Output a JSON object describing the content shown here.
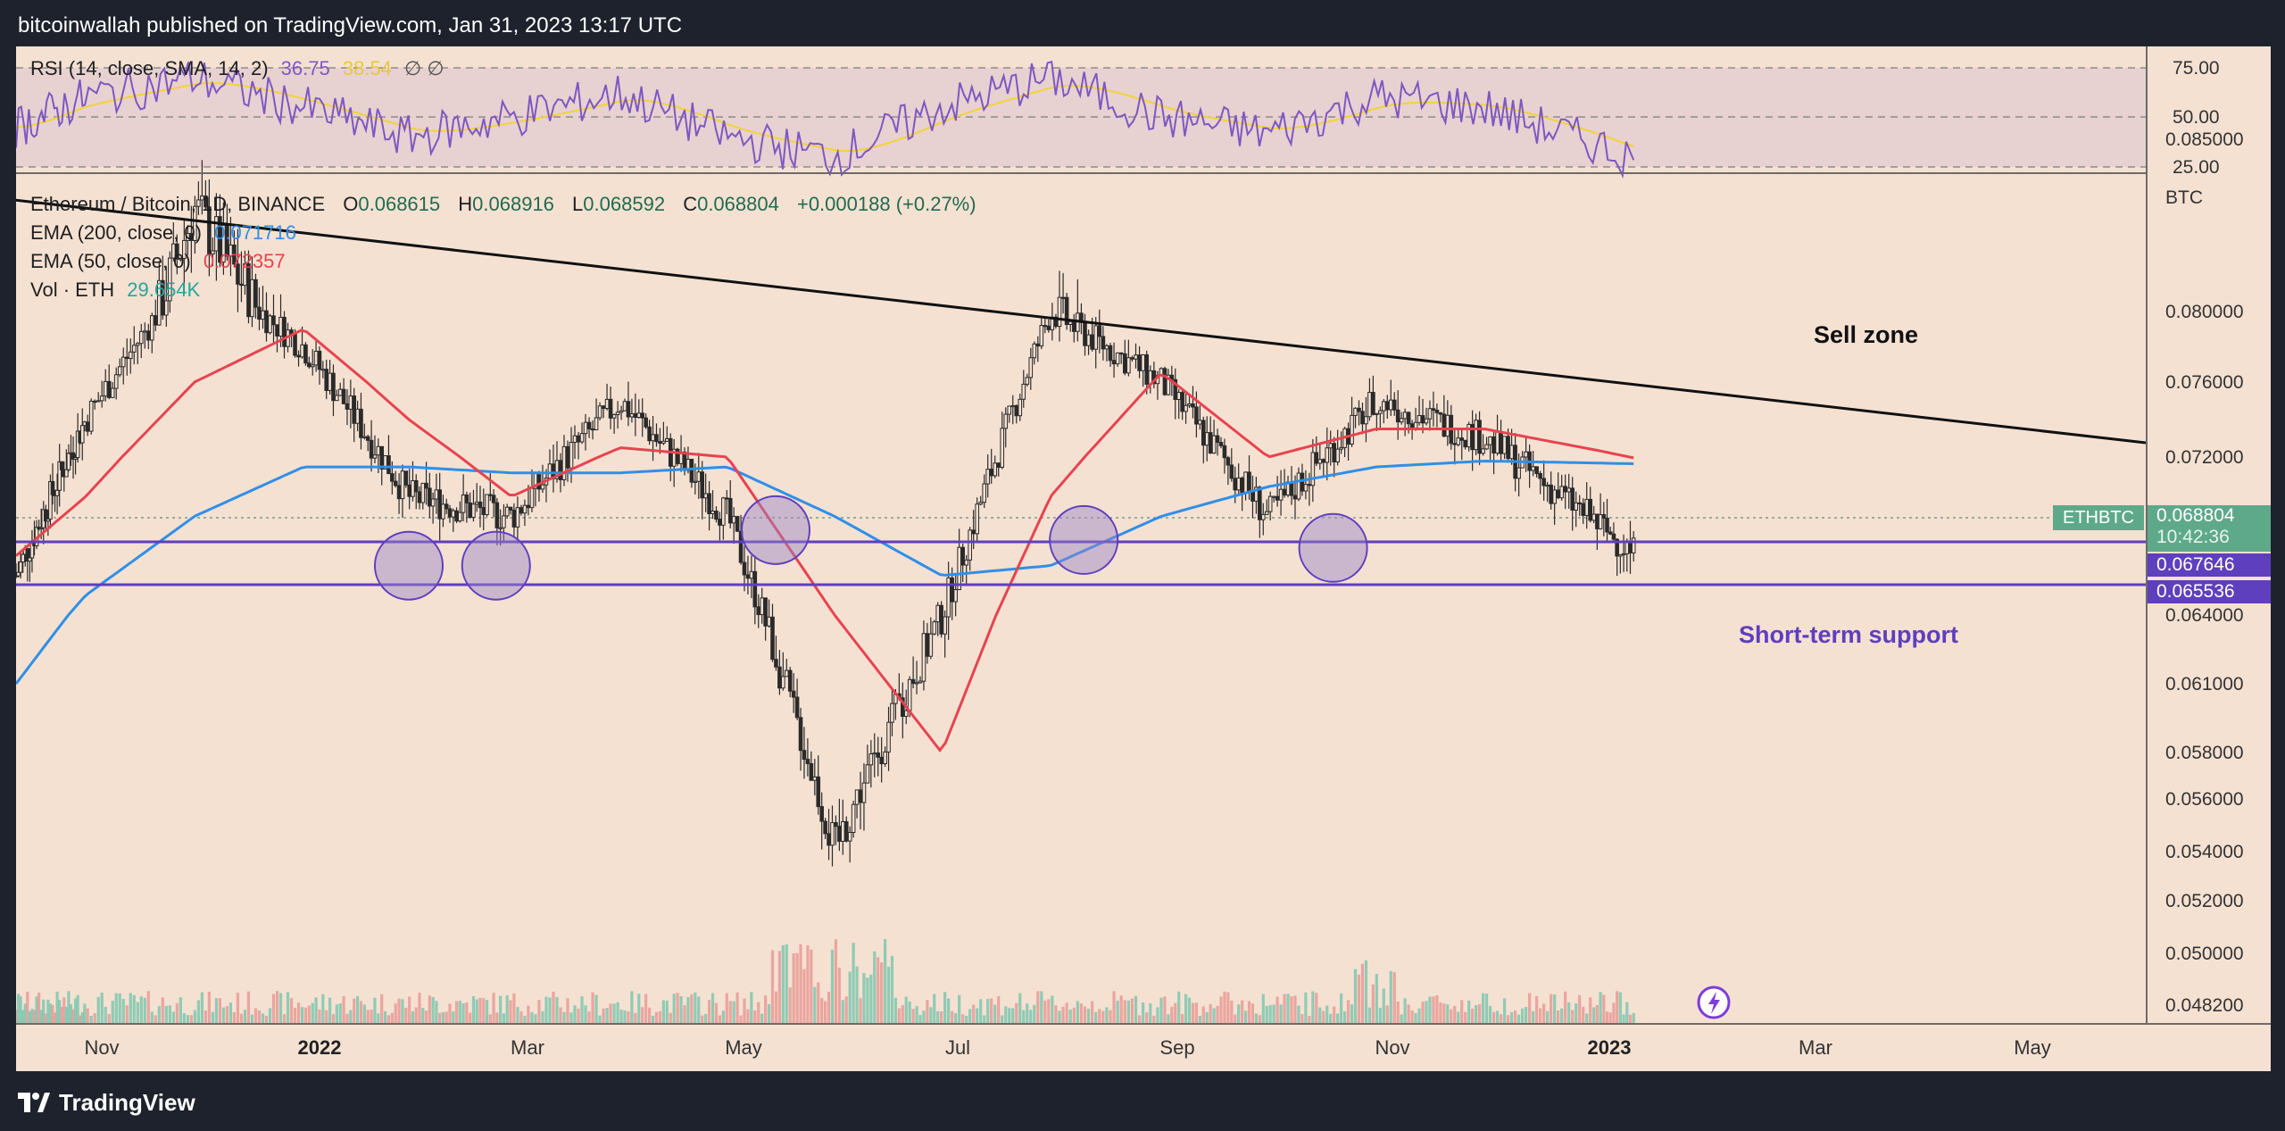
{
  "header": {
    "title": "bitcoinwallah published on TradingView.com, Jan 31, 2023 13:17 UTC"
  },
  "footer": {
    "brand": "TradingView"
  },
  "colors": {
    "background": "#f5e1d2",
    "ema200": "#2f8fe8",
    "ema50": "#e8434f",
    "rsi": "#7e57c2",
    "rsi_sma": "#f2d335",
    "support": "#5e3fbe",
    "up_volume": "#7cc7b0",
    "down_volume": "#e89a96",
    "candle": "#2a2a2a",
    "price_badge": "#5fa98b"
  },
  "rsi_pane": {
    "legend": {
      "label": "RSI (14, close, SMA, 14, 2)",
      "rsi_value": "36.75",
      "sma_value": "38.54",
      "extra": "∅ ∅"
    },
    "ticks": [
      "75.00",
      "50.00",
      "25.00"
    ]
  },
  "price_pane": {
    "legend": {
      "symbol": "Ethereum / Bitcoin, 1D, BINANCE",
      "open_label": "O",
      "open": "0.068615",
      "high_label": "H",
      "high": "0.068916",
      "low_label": "L",
      "low": "0.068592",
      "close_label": "C",
      "close": "0.068804",
      "change": "+0.000188 (+0.27%)",
      "ema200_label": "EMA (200, close, 0)",
      "ema200_value": "0.071716",
      "ema50_label": "EMA (50, close, 0)",
      "ema50_value": "0.072357",
      "vol_label": "Vol · ETH",
      "vol_value": "29.654K"
    },
    "currency": "BTC",
    "ticks": [
      "0.085000",
      "0.080000",
      "0.076000",
      "0.072000",
      "0.064000",
      "0.061000",
      "0.058000",
      "0.056000",
      "0.054000",
      "0.052000",
      "0.050000",
      "0.048200"
    ],
    "current_price": {
      "symbol": "ETHBTC",
      "price": "0.068804",
      "countdown": "10:42:36"
    },
    "support_levels": [
      "0.067646",
      "0.065536"
    ],
    "annotations": {
      "sell_zone": "Sell zone",
      "support": "Short-term support"
    }
  },
  "time_axis": [
    "Nov",
    "2022",
    "Mar",
    "May",
    "Jul",
    "Sep",
    "Nov",
    "2023",
    "Mar",
    "May"
  ],
  "chart_data": {
    "type": "candlestick",
    "title": "Ethereum / Bitcoin, 1D, BINANCE",
    "x": [
      "2021-10",
      "2021-11",
      "2021-12",
      "2022-01",
      "2022-02",
      "2022-03",
      "2022-04",
      "2022-05",
      "2022-06",
      "2022-07",
      "2022-08",
      "2022-09",
      "2022-10",
      "2022-11",
      "2022-12",
      "2023-01"
    ],
    "series": [
      {
        "name": "ETH/BTC close",
        "values": [
          0.066,
          0.074,
          0.083,
          0.078,
          0.07,
          0.069,
          0.075,
          0.069,
          0.054,
          0.064,
          0.08,
          0.076,
          0.069,
          0.075,
          0.073,
          0.0688
        ]
      },
      {
        "name": "EMA (200, close, 0)",
        "values": [
          0.061,
          0.065,
          0.069,
          0.0715,
          0.0715,
          0.0712,
          0.0712,
          0.0715,
          0.069,
          0.066,
          0.0665,
          0.069,
          0.0705,
          0.0715,
          0.0718,
          0.0717
        ]
      },
      {
        "name": "EMA (50, close, 0)",
        "values": [
          0.067,
          0.07,
          0.076,
          0.079,
          0.074,
          0.07,
          0.0725,
          0.072,
          0.064,
          0.058,
          0.07,
          0.0765,
          0.072,
          0.0735,
          0.0735,
          0.0724
        ]
      },
      {
        "name": "RSI (14, close, SMA, 14, 2)",
        "values": [
          45,
          60,
          70,
          55,
          40,
          50,
          62,
          40,
          30,
          55,
          70,
          50,
          42,
          60,
          55,
          36.75
        ]
      }
    ],
    "levels": [
      0.067646,
      0.065536
    ],
    "ylim": [
      0.0475,
      0.0865
    ],
    "grid": false,
    "legend": "top-left"
  }
}
